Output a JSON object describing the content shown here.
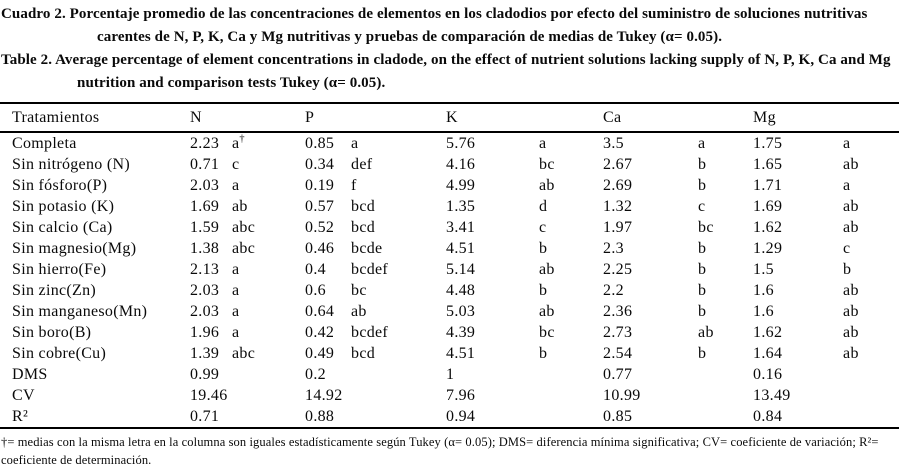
{
  "title": {
    "spanish": "Cuadro 2. Porcentaje promedio de las concentraciones de elementos en los cladodios por efecto del suministro de soluciones nutritivas carentes de N, P, K, Ca y Mg nutritivas y pruebas de comparación de medias de Tukey (α= 0.05).",
    "english": "Table 2. Average percentage of element concentrations in cladode, on the effect of nutrient solutions lacking supply of N, P, K, Ca and Mg nutrition and comparison tests Tukey (α= 0.05)."
  },
  "table": {
    "columns": [
      "Tratamientos",
      "N",
      "P",
      "K",
      "Ca",
      "Mg"
    ],
    "rows": [
      {
        "treatment": "Completa",
        "cells": [
          [
            "2.23",
            "a†"
          ],
          [
            "0.85",
            "a"
          ],
          [
            "5.76",
            "a"
          ],
          [
            "3.5",
            "a"
          ],
          [
            "1.75",
            "a"
          ]
        ]
      },
      {
        "treatment": "Sin nitrógeno (N)",
        "cells": [
          [
            "0.71",
            "c"
          ],
          [
            "0.34",
            "def"
          ],
          [
            "4.16",
            "bc"
          ],
          [
            "2.67",
            "b"
          ],
          [
            "1.65",
            "ab"
          ]
        ]
      },
      {
        "treatment": "Sin fósforo(P)",
        "cells": [
          [
            "2.03",
            "a"
          ],
          [
            "0.19",
            "f"
          ],
          [
            "4.99",
            "ab"
          ],
          [
            "2.69",
            "b"
          ],
          [
            "1.71",
            "a"
          ]
        ]
      },
      {
        "treatment": "Sin potasio (K)",
        "cells": [
          [
            "1.69",
            "ab"
          ],
          [
            "0.57",
            "bcd"
          ],
          [
            "1.35",
            "d"
          ],
          [
            "1.32",
            "c"
          ],
          [
            "1.69",
            "ab"
          ]
        ]
      },
      {
        "treatment": "Sin calcio (Ca)",
        "cells": [
          [
            "1.59",
            "abc"
          ],
          [
            "0.52",
            "bcd"
          ],
          [
            "3.41",
            "c"
          ],
          [
            "1.97",
            "bc"
          ],
          [
            "1.62",
            "ab"
          ]
        ]
      },
      {
        "treatment": "Sin magnesio(Mg)",
        "cells": [
          [
            "1.38",
            "abc"
          ],
          [
            "0.46",
            "bcde"
          ],
          [
            "4.51",
            "b"
          ],
          [
            "2.3",
            "b"
          ],
          [
            "1.29",
            "c"
          ]
        ]
      },
      {
        "treatment": "Sin hierro(Fe)",
        "cells": [
          [
            "2.13",
            "a"
          ],
          [
            "0.4",
            "bcdef"
          ],
          [
            "5.14",
            "ab"
          ],
          [
            "2.25",
            "b"
          ],
          [
            "1.5",
            "b"
          ]
        ]
      },
      {
        "treatment": "Sin zinc(Zn)",
        "cells": [
          [
            "2.03",
            "a"
          ],
          [
            "0.6",
            "bc"
          ],
          [
            "4.48",
            "b"
          ],
          [
            "2.2",
            "b"
          ],
          [
            "1.6",
            "ab"
          ]
        ]
      },
      {
        "treatment": "Sin manganeso(Mn)",
        "cells": [
          [
            "2.03",
            "a"
          ],
          [
            "0.64",
            "ab"
          ],
          [
            "5.03",
            "ab"
          ],
          [
            "2.36",
            "b"
          ],
          [
            "1.6",
            "ab"
          ]
        ]
      },
      {
        "treatment": "Sin boro(B)",
        "cells": [
          [
            "1.96",
            "a"
          ],
          [
            "0.42",
            "bcdef"
          ],
          [
            "4.39",
            "bc"
          ],
          [
            "2.73",
            "ab"
          ],
          [
            "1.62",
            "ab"
          ]
        ]
      },
      {
        "treatment": "Sin cobre(Cu)",
        "cells": [
          [
            "1.39",
            "abc"
          ],
          [
            "0.49",
            "bcd"
          ],
          [
            "4.51",
            "b"
          ],
          [
            "2.54",
            "b"
          ],
          [
            "1.64",
            "ab"
          ]
        ]
      },
      {
        "treatment": "DMS",
        "cells": [
          [
            "0.99",
            ""
          ],
          [
            "0.2",
            ""
          ],
          [
            "1",
            ""
          ],
          [
            "0.77",
            ""
          ],
          [
            "0.16",
            ""
          ]
        ]
      },
      {
        "treatment": "CV",
        "cells": [
          [
            "19.46",
            ""
          ],
          [
            "14.92",
            ""
          ],
          [
            "7.96",
            ""
          ],
          [
            "10.99",
            ""
          ],
          [
            "13.49",
            ""
          ]
        ]
      },
      {
        "treatment": "R²",
        "cells": [
          [
            "0.71",
            ""
          ],
          [
            "0.88",
            ""
          ],
          [
            "0.94",
            ""
          ],
          [
            "0.85",
            ""
          ],
          [
            "0.84",
            ""
          ]
        ]
      }
    ]
  },
  "footnote": "†= medias con la misma letra en la columna son iguales estadísticamente según Tukey (α= 0.05); DMS= diferencia mínima significativa; CV= coeficiente de variación; R²= coeficiente de determinación."
}
